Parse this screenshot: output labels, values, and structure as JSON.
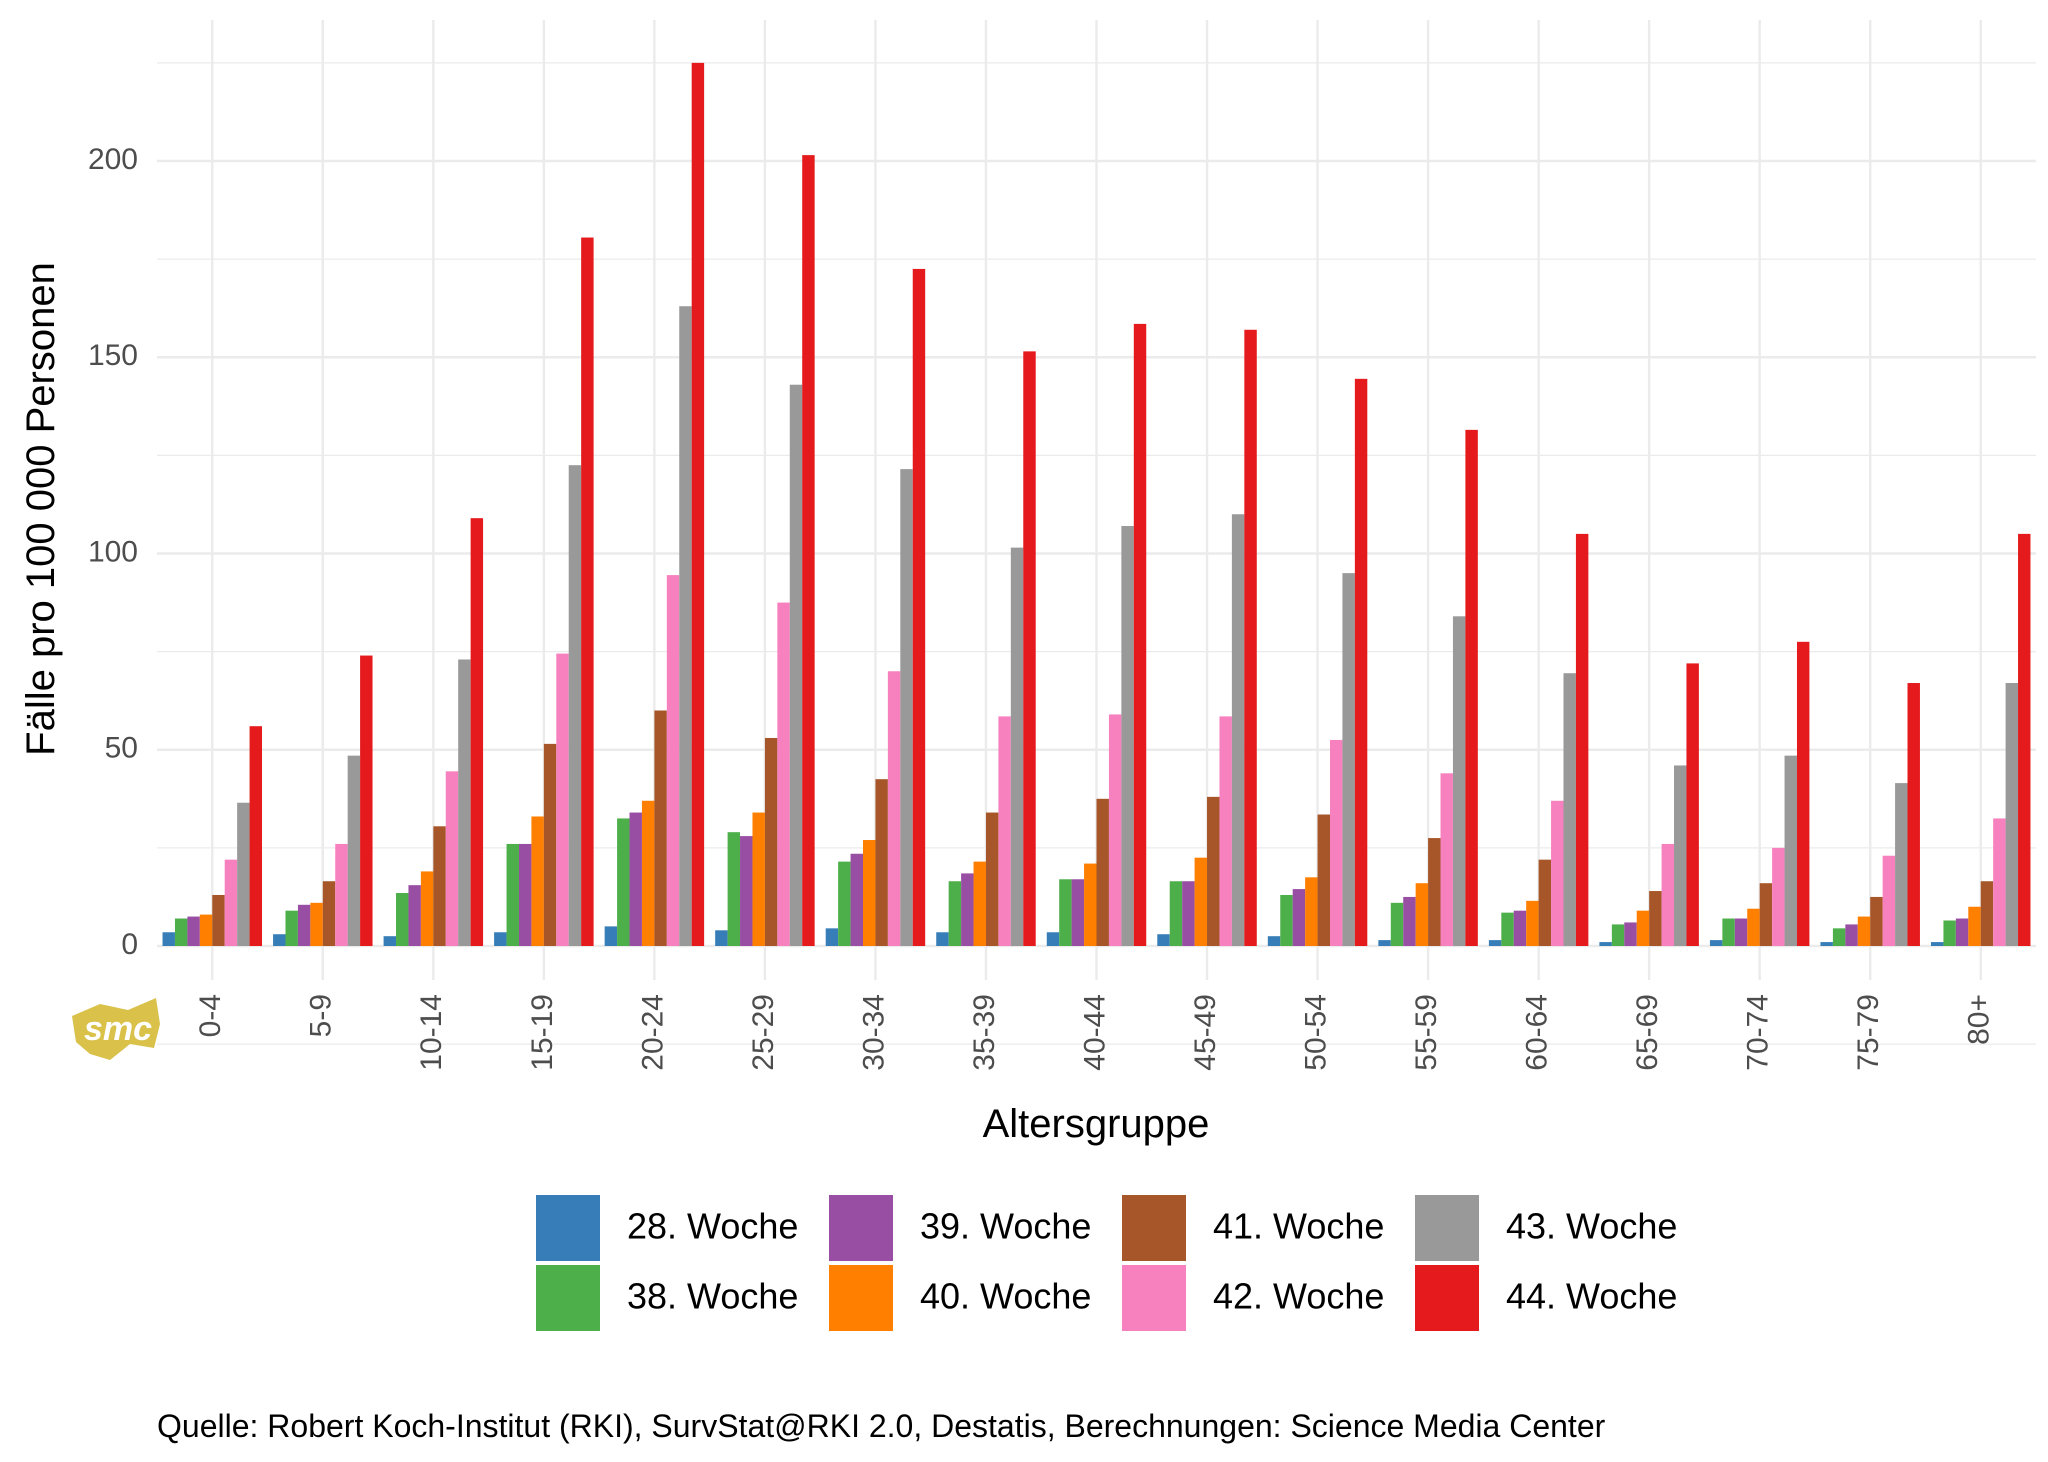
{
  "chart_data": {
    "type": "bar",
    "title": "",
    "xlabel": "Altersgruppe",
    "ylabel": "Fälle pro 100 000 Personen",
    "ylim": [
      -10,
      235
    ],
    "yticks": [
      0,
      50,
      100,
      150,
      200
    ],
    "grid": true,
    "legend_position": "bottom",
    "categories": [
      "0-4",
      "5-9",
      "10-14",
      "15-19",
      "20-24",
      "25-29",
      "30-34",
      "35-39",
      "40-44",
      "45-49",
      "50-54",
      "55-59",
      "60-64",
      "65-69",
      "70-74",
      "75-79",
      "80+"
    ],
    "series": [
      {
        "name": "28. Woche",
        "color": "#377EB8",
        "values": [
          3.5,
          3,
          2.5,
          3.5,
          5,
          4,
          4.5,
          3.5,
          3.5,
          3,
          2.5,
          1.5,
          1.5,
          1,
          1.5,
          1,
          1
        ]
      },
      {
        "name": "38. Woche",
        "color": "#4DAF4A",
        "values": [
          7,
          9,
          13.5,
          26,
          32.5,
          29,
          21.5,
          16.5,
          17,
          16.5,
          13,
          11,
          8.5,
          5.5,
          7,
          4.5,
          6.5
        ]
      },
      {
        "name": "39. Woche",
        "color": "#984EA3",
        "values": [
          7.5,
          10.5,
          15.5,
          26,
          34,
          28,
          23.5,
          18.5,
          17,
          16.5,
          14.5,
          12.5,
          9,
          6,
          7,
          5.5,
          7
        ]
      },
      {
        "name": "40. Woche",
        "color": "#FF7F00",
        "values": [
          8,
          11,
          19,
          33,
          37,
          34,
          27,
          21.5,
          21,
          22.5,
          17.5,
          16,
          11.5,
          9,
          9.5,
          7.5,
          10
        ]
      },
      {
        "name": "41. Woche",
        "color": "#A65628",
        "values": [
          13,
          16.5,
          30.5,
          51.5,
          60,
          53,
          42.5,
          34,
          37.5,
          38,
          33.5,
          27.5,
          22,
          14,
          16,
          12.5,
          16.5
        ]
      },
      {
        "name": "42. Woche",
        "color": "#F781BF",
        "values": [
          22,
          26,
          44.5,
          74.5,
          94.5,
          87.5,
          70,
          58.5,
          59,
          58.5,
          52.5,
          44,
          37,
          26,
          25,
          23,
          32.5
        ]
      },
      {
        "name": "43. Woche",
        "color": "#999999",
        "values": [
          36.5,
          48.5,
          73,
          122.5,
          163,
          143,
          121.5,
          101.5,
          107,
          110,
          95,
          84,
          69.5,
          46,
          48.5,
          41.5,
          67
        ]
      },
      {
        "name": "44. Woche",
        "color": "#E41A1C",
        "values": [
          56,
          74,
          109,
          180.5,
          225,
          201.5,
          172.5,
          151.5,
          158.5,
          157,
          144.5,
          131.5,
          105,
          72,
          77.5,
          67,
          105
        ]
      }
    ]
  },
  "source": "Quelle: Robert Koch-Institut (RKI), SurvStat@RKI 2.0, Destatis, Berechnungen: Science Media Center",
  "logo": {
    "text": "smc",
    "color": "#D9C14A"
  }
}
